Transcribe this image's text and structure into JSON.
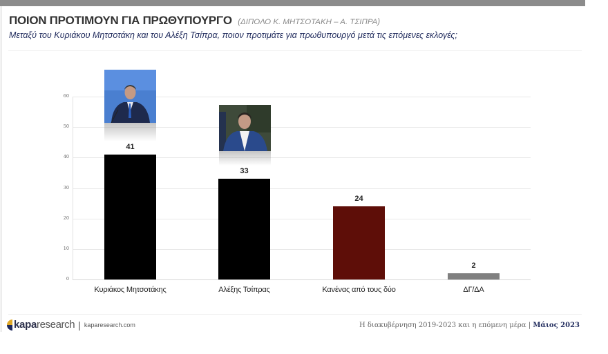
{
  "header": {
    "title": "ΠΟΙΟΝ ΠΡΟΤΙΜΟΥΝ ΓΙΑ ΠΡΩΘΥΠΟΥΡΓΟ",
    "subtitle": "(ΔΙΠΟΛΟ Κ. ΜΗΤΣΟΤΑΚΗ – Α. ΤΣΙΠΡΑ)",
    "question": "Μεταξύ του Κυριάκου Μητσοτάκη και του Αλέξη Τσίπρα, ποιον προτιμάτε για πρωθυπουργό μετά τις επόμενες εκλογές;"
  },
  "colors": {
    "bar_mitsotakis": "#000000",
    "bar_tsipras": "#000000",
    "bar_neither": "#5e0e08",
    "bar_dk": "#808080",
    "top_bar": "#8c8c8c",
    "navy": "#1f2a5c"
  },
  "chart_data": {
    "type": "bar",
    "title": "ΠΟΙΟΝ ΠΡΟΤΙΜΟΥΝ ΓΙΑ ΠΡΩΘΥΠΟΥΡΓΟ",
    "subtitle": "(ΔΙΠΟΛΟ Κ. ΜΗΤΣΟΤΑΚΗ – Α. ΤΣΙΠΡΑ)",
    "categories": [
      "Κυριάκος Μητσοτάκης",
      "Αλέξης Τσίπρας",
      "Κανένας από τους δύο",
      "ΔΓ/ΔΑ"
    ],
    "values": [
      41,
      33,
      24,
      2
    ],
    "value_labels": [
      "41",
      "33",
      "24",
      "2"
    ],
    "bar_colors": [
      "#000000",
      "#000000",
      "#5e0e08",
      "#808080"
    ],
    "xlabel": "",
    "ylabel": "",
    "ylim": [
      0,
      60
    ],
    "yticks": [
      "0",
      "10",
      "20",
      "30",
      "40",
      "50",
      "60"
    ],
    "grid": true,
    "legend": null
  },
  "photos": [
    {
      "name": "mitsotakis-photo",
      "alt": "Κυριάκος Μητσοτάκης"
    },
    {
      "name": "tsipras-photo",
      "alt": "Αλέξης Τσίπρας"
    }
  ],
  "footer": {
    "logo_bold": "kapa",
    "logo_light": "research",
    "separator": "|",
    "url": "kaparesearch.com",
    "survey_title": "Η διακυβέρνηση 2019-2023 και η επόμενη μέρα",
    "pipe": "|",
    "date": "Μάιος 2023"
  }
}
